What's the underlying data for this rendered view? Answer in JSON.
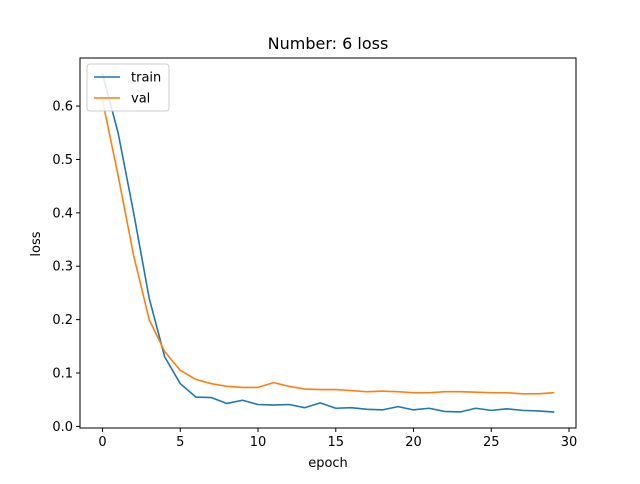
{
  "chart_data": {
    "type": "line",
    "title": "Number: 6 loss",
    "xlabel": "epoch",
    "ylabel": "loss",
    "xlim": [
      -1.45,
      30.45
    ],
    "ylim": [
      -0.003,
      0.69
    ],
    "xticks": [
      0,
      5,
      10,
      15,
      20,
      25,
      30
    ],
    "yticks": [
      0.0,
      0.1,
      0.2,
      0.3,
      0.4,
      0.5,
      0.6
    ],
    "ytick_labels": [
      "0.0",
      "0.1",
      "0.2",
      "0.3",
      "0.4",
      "0.5",
      "0.6"
    ],
    "grid": false,
    "legend_position": "upper left",
    "x": [
      0,
      1,
      2,
      3,
      4,
      5,
      6,
      7,
      8,
      9,
      10,
      11,
      12,
      13,
      14,
      15,
      16,
      17,
      18,
      19,
      20,
      21,
      22,
      23,
      24,
      25,
      26,
      27,
      28,
      29
    ],
    "series": [
      {
        "name": "train",
        "color": "#1f77b4",
        "values": [
          0.66,
          0.55,
          0.4,
          0.24,
          0.13,
          0.08,
          0.055,
          0.054,
          0.043,
          0.049,
          0.041,
          0.04,
          0.041,
          0.035,
          0.044,
          0.034,
          0.035,
          0.032,
          0.031,
          0.037,
          0.031,
          0.034,
          0.028,
          0.027,
          0.034,
          0.03,
          0.033,
          0.03,
          0.029,
          0.027
        ]
      },
      {
        "name": "val",
        "color": "#ff7f0e",
        "values": [
          0.61,
          0.47,
          0.32,
          0.2,
          0.14,
          0.105,
          0.088,
          0.08,
          0.075,
          0.073,
          0.073,
          0.082,
          0.075,
          0.07,
          0.069,
          0.069,
          0.067,
          0.065,
          0.066,
          0.065,
          0.063,
          0.063,
          0.065,
          0.065,
          0.064,
          0.063,
          0.063,
          0.061,
          0.061,
          0.063
        ]
      }
    ]
  }
}
